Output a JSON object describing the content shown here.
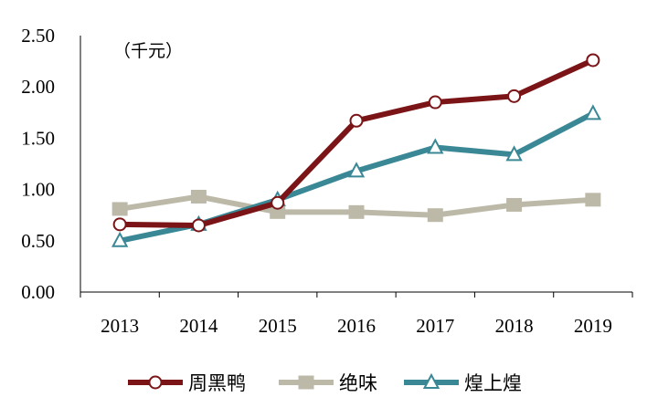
{
  "chart_data": {
    "type": "line",
    "unit_label": "（千元）",
    "categories": [
      "2013",
      "2014",
      "2015",
      "2016",
      "2017",
      "2018",
      "2019"
    ],
    "ylim": [
      0,
      2.5
    ],
    "yticks": [
      "0.00",
      "0.50",
      "1.00",
      "1.50",
      "2.00",
      "2.50"
    ],
    "grid": false,
    "legend_position": "bottom",
    "series": [
      {
        "name": "周黑鸭",
        "values": [
          0.66,
          0.65,
          0.87,
          1.67,
          1.85,
          1.91,
          2.26
        ],
        "color": "#7B1416",
        "marker": "circle"
      },
      {
        "name": "绝味",
        "values": [
          0.81,
          0.93,
          0.78,
          0.78,
          0.75,
          0.85,
          0.9
        ],
        "color": "#BDB9A8",
        "marker": "square"
      },
      {
        "name": "煌上煌",
        "values": [
          0.5,
          0.66,
          0.9,
          1.18,
          1.41,
          1.34,
          1.74
        ],
        "color": "#3A8896",
        "marker": "triangle"
      }
    ]
  }
}
